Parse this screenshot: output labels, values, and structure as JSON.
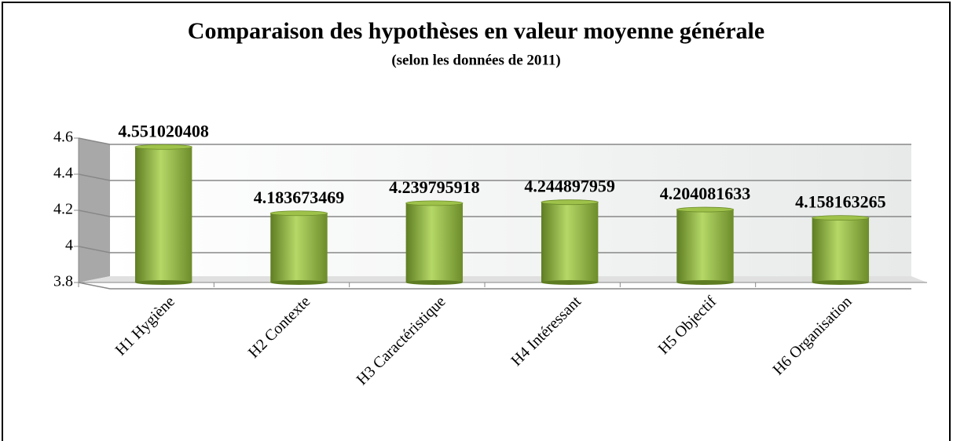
{
  "chart_data": {
    "type": "bar",
    "title": "Comparaison des hypothèses en valeur moyenne générale",
    "subtitle": "(selon les données de 2011)",
    "categories": [
      "H1 Hygiène",
      "H2 Contexte",
      "H3 Caractéristique",
      "H4 Intéressant",
      "H5 Objectif",
      "H6 Organisation"
    ],
    "values": [
      4.551020408,
      4.183673469,
      4.239795918,
      4.244897959,
      4.204081633,
      4.158163265
    ],
    "color": "#8fb33c",
    "ylim": [
      3.8,
      4.6
    ],
    "yticks": [
      3.8,
      4,
      4.2,
      4.4,
      4.6
    ],
    "grid": true
  }
}
